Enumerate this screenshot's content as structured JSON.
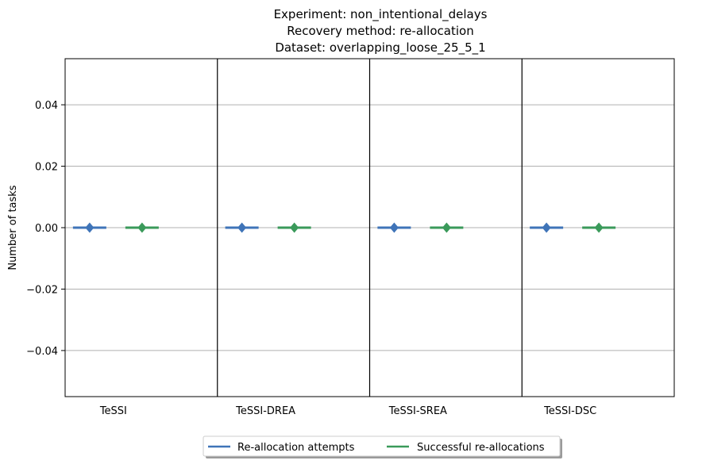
{
  "chart_data": {
    "type": "line",
    "title_lines": [
      "Experiment: non_intentional_delays",
      "Recovery method: re-allocation",
      "Dataset: overlapping_loose_25_5_1"
    ],
    "xlabel": "",
    "ylabel": "Number of tasks",
    "categories": [
      "TeSSI",
      "TeSSI-DREA",
      "TeSSI-SREA",
      "TeSSI-DSC"
    ],
    "ylim": [
      -0.055,
      0.055
    ],
    "yticks": [
      -0.04,
      -0.02,
      0.0,
      0.02,
      0.04
    ],
    "ytick_labels": [
      "−0.04",
      "−0.02",
      "0.00",
      "0.02",
      "0.04"
    ],
    "grid": "horizontal",
    "legend_position": "bottom-center",
    "marker": "diamond",
    "series": [
      {
        "name": "Re-allocation attempts",
        "color": "#3f74b8",
        "values": [
          0,
          0,
          0,
          0
        ]
      },
      {
        "name": "Successful re-allocations",
        "color": "#3a9a5a",
        "values": [
          0,
          0,
          0,
          0
        ]
      }
    ]
  }
}
